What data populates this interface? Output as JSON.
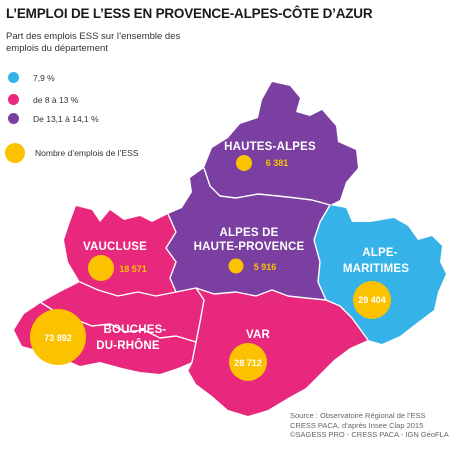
{
  "title": "L’EMPLOI DE L’ESS EN PROVENCE-ALPES-CÔTE D’AZUR",
  "subtitle": "Part des emplois ESS sur l’ensemble des emplois du département",
  "legend": {
    "c1": {
      "label": "7,9 %",
      "color": "#35b3e8"
    },
    "c2": {
      "label": "de 8 à 13 %",
      "color": "#e8287c"
    },
    "c3": {
      "label": "De 13,1 à 14,1 %",
      "color": "#7a3fa0"
    },
    "bubble": {
      "label": "Nombre d’emplois de l’ESS",
      "color": "#fcc200"
    }
  },
  "departments": {
    "hautes_alpes": {
      "name": "HAUTES-ALPES",
      "jobs": "6 381",
      "class": "De 13,1 à 14,1 %"
    },
    "alpes_haute_provence": {
      "name1": "ALPES DE",
      "name2": "HAUTE-PROVENCE",
      "jobs": "5 916",
      "class": "De 13,1 à 14,1 %"
    },
    "vaucluse": {
      "name": "VAUCLUSE",
      "jobs": "18 571",
      "class": "de 8 à 13 %"
    },
    "alpes_maritimes": {
      "name1": "ALPE-",
      "name2": "MARITIMES",
      "jobs": "29 404",
      "class": "7,9 %"
    },
    "bouches_du_rhone": {
      "name1": "BOUCHES-",
      "name2": "DU-RHÔNE",
      "jobs": "73 892",
      "class": "de 8 à 13 %"
    },
    "var": {
      "name": "VAR",
      "jobs": "28 712",
      "class": "de 8 à 13 %"
    }
  },
  "source": {
    "line1": "Source : Observatoire Régional de l’ESS",
    "line2": "CRESS PACA, d’après Insee Clap 2015",
    "line3": "©SAGESS PRO - CRESS PACA - IGN GéoFLA"
  }
}
